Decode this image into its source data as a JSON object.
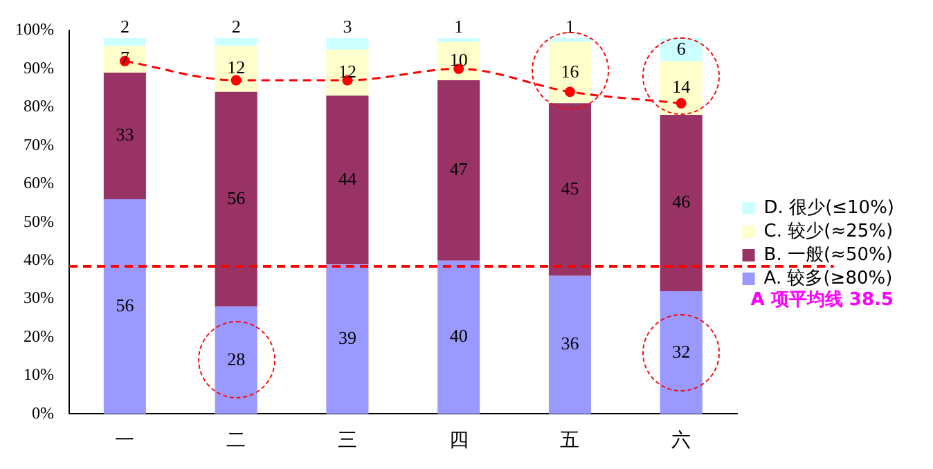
{
  "chart_data": {
    "type": "bar",
    "stacked": true,
    "categories": [
      "一",
      "二",
      "三",
      "四",
      "五",
      "六"
    ],
    "series": [
      {
        "name": "A. 较多(≥80%)",
        "color": "#9999ff",
        "values": [
          56,
          28,
          39,
          40,
          36,
          32
        ],
        "value_labels": [
          "56",
          "28",
          "39",
          "40",
          "36",
          "32"
        ]
      },
      {
        "name": "B. 一般(≈50%)",
        "color": "#993366",
        "values": [
          33,
          56,
          44,
          47,
          45,
          46
        ],
        "value_labels": [
          "33",
          "56",
          "44",
          "47",
          "45",
          "46"
        ]
      },
      {
        "name": "C. 较少(≈25%)",
        "color": "#ffffcc",
        "values": [
          7,
          12,
          12,
          10,
          16,
          14
        ],
        "value_labels": [
          "7",
          "12",
          "12",
          "10",
          "16",
          "14"
        ]
      },
      {
        "name": "D. 很少(≤10%)",
        "color": "#ccffff",
        "values": [
          2,
          2,
          3,
          1,
          1,
          6
        ],
        "value_labels": [
          "2",
          "2",
          "3",
          "1",
          "1",
          "6"
        ]
      },
      {
        "type": "line",
        "color": "#ff0000",
        "line_style": "dashed",
        "marker": "circle",
        "values": [
          92,
          87,
          87,
          90,
          84,
          81
        ]
      }
    ],
    "ylim": [
      0,
      100
    ],
    "yticks": [
      {
        "value": 0,
        "label": "0%"
      },
      {
        "value": 10,
        "label": "10%"
      },
      {
        "value": 20,
        "label": "20%"
      },
      {
        "value": 30,
        "label": "30%"
      },
      {
        "value": 40,
        "label": "40%"
      },
      {
        "value": 50,
        "label": "50%"
      },
      {
        "value": 60,
        "label": "60%"
      },
      {
        "value": 70,
        "label": "70%"
      },
      {
        "value": 80,
        "label": "80%"
      },
      {
        "value": 90,
        "label": "90%"
      },
      {
        "value": 100,
        "label": "100%"
      }
    ],
    "grid": false,
    "legend": "right",
    "ref_lines": [
      {
        "axis": "y",
        "value": 38.5,
        "label": "A 项平均线 38.5",
        "color": "#ff0000",
        "line_style": "dashed"
      }
    ]
  }
}
